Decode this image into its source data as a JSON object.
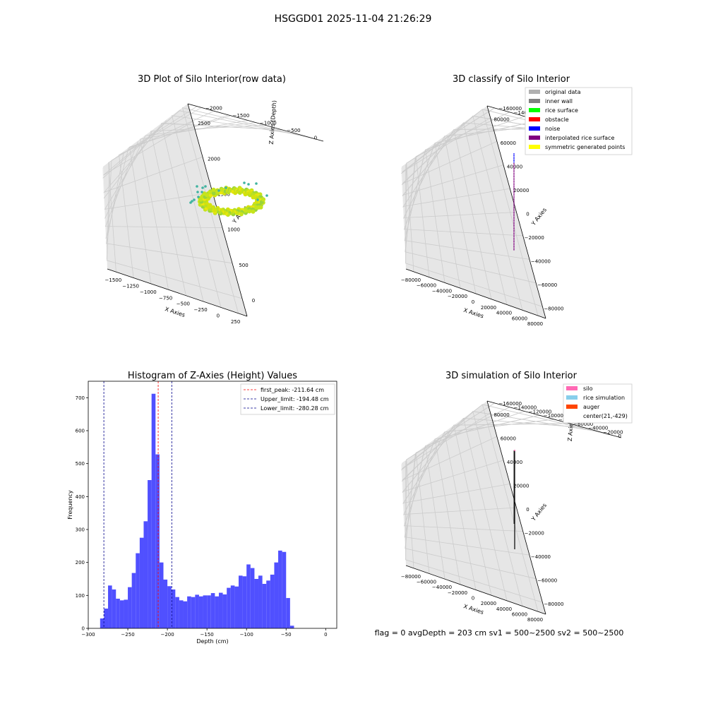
{
  "figure": {
    "title": "HSGGD01 2025-11-04 21:26:29",
    "footer": "flag = 0     avgDepth = 203 cm  sv1 = 500~2500  sv2 = 500~2500"
  },
  "colors": {
    "grid": "#cccccc",
    "pane": "#f2f2f2",
    "hist_bar": "#5050ff",
    "peak_line": "#ff0000",
    "limit_line": "#00008b"
  },
  "chart_data": [
    {
      "id": "raw",
      "type": "scatter",
      "projection": "3d",
      "title": "3D Plot of Silo Interior(row data)",
      "xlabel": "X Axies",
      "ylabel": "Y Axies",
      "zlabel": "Z Axies (Depth)",
      "xticks": [
        "−1500",
        "−1250",
        "−1000",
        "−750",
        "−500",
        "−250",
        "0",
        "250"
      ],
      "yticks": [
        "0",
        "500",
        "1000",
        "1500",
        "2000",
        "2500"
      ],
      "zticks": [
        "0",
        "−500",
        "−1000",
        "−1500",
        "−2000"
      ],
      "grid": true
    },
    {
      "id": "classify",
      "type": "scatter",
      "projection": "3d",
      "title": "3D classify of Silo Interior",
      "xlabel": "X Axies",
      "ylabel": "Y Axies",
      "zlabel": "Z Axies (Depth)",
      "xticks": [
        "−80000",
        "−60000",
        "−40000",
        "−20000",
        "0",
        "20000",
        "40000",
        "60000",
        "80000"
      ],
      "yticks": [
        "−80000",
        "−60000",
        "−40000",
        "−20000",
        "0",
        "20000",
        "40000",
        "60000",
        "80000"
      ],
      "zticks": [
        "0",
        "−20000",
        "−40000",
        "−60000",
        "−80000",
        "−100000",
        "−120000",
        "−140000",
        "−160000"
      ],
      "legend": {
        "position": "top-right",
        "entries": [
          {
            "label": "original data",
            "color": "#b0b0b0"
          },
          {
            "label": "inner wall",
            "color": "#808080"
          },
          {
            "label": "rice surface",
            "color": "#00ff00"
          },
          {
            "label": "obstacle",
            "color": "#ff0000"
          },
          {
            "label": "noise",
            "color": "#0000ff"
          },
          {
            "label": "interpolated rice surface",
            "color": "#800080"
          },
          {
            "label": "symmetric generated points",
            "color": "#ffff00"
          }
        ]
      },
      "grid": true
    },
    {
      "id": "hist",
      "type": "bar",
      "title": "Histogram of Z-Axies (Height) Values",
      "xlabel": "Depth (cm)",
      "ylabel": "Frequency",
      "xlim": [
        -300,
        14
      ],
      "ylim": [
        0,
        750
      ],
      "xticks": [
        -300,
        -250,
        -200,
        -150,
        -100,
        -50,
        0
      ],
      "xtick_labels": [
        "−300",
        "−250",
        "−200",
        "−150",
        "−100",
        "−50",
        "0"
      ],
      "yticks": [
        0,
        100,
        200,
        300,
        400,
        500,
        600,
        700
      ],
      "bin_start": -285,
      "bin_width": 5,
      "values": [
        30,
        60,
        130,
        118,
        90,
        85,
        87,
        125,
        168,
        228,
        275,
        325,
        450,
        712,
        528,
        200,
        148,
        128,
        118,
        95,
        85,
        82,
        97,
        95,
        102,
        97,
        100,
        100,
        107,
        97,
        108,
        103,
        123,
        130,
        127,
        160,
        158,
        194,
        183,
        150,
        160,
        135,
        145,
        163,
        200,
        236,
        232,
        92,
        8
      ],
      "lines": [
        {
          "label": "first_peak: -211.64 cm",
          "x": -211.64,
          "color": "#ff0000"
        },
        {
          "label": "Upper_limit: -194.48 cm",
          "x": -194.48,
          "color": "#00008b"
        },
        {
          "label": "Lower_limit: -280.28 cm",
          "x": -280.28,
          "color": "#00008b"
        }
      ],
      "legend": {
        "position": "top-right"
      },
      "grid": false
    },
    {
      "id": "simulation",
      "type": "scatter",
      "projection": "3d",
      "title": "3D simulation of Silo Interior",
      "xlabel": "X Axies",
      "ylabel": "Y Axies",
      "zlabel": "Z Axies (Depth)",
      "xticks": [
        "−80000",
        "−60000",
        "−40000",
        "−20000",
        "0",
        "20000",
        "40000",
        "60000",
        "80000"
      ],
      "yticks": [
        "−80000",
        "−60000",
        "−40000",
        "−20000",
        "0",
        "20000",
        "40000",
        "60000",
        "80000"
      ],
      "zticks": [
        "0",
        "−20000",
        "−40000",
        "−60000",
        "−80000",
        "−100000",
        "−120000",
        "−140000",
        "−160000"
      ],
      "legend": {
        "position": "top-right",
        "entries": [
          {
            "label": "silo",
            "color": "#ff69b4"
          },
          {
            "label": "rice simulation",
            "color": "#87ceeb"
          },
          {
            "label": "auger",
            "color": "#ff4500"
          },
          {
            "label": "center(21,-429)",
            "color": ""
          }
        ]
      },
      "grid": true
    }
  ]
}
